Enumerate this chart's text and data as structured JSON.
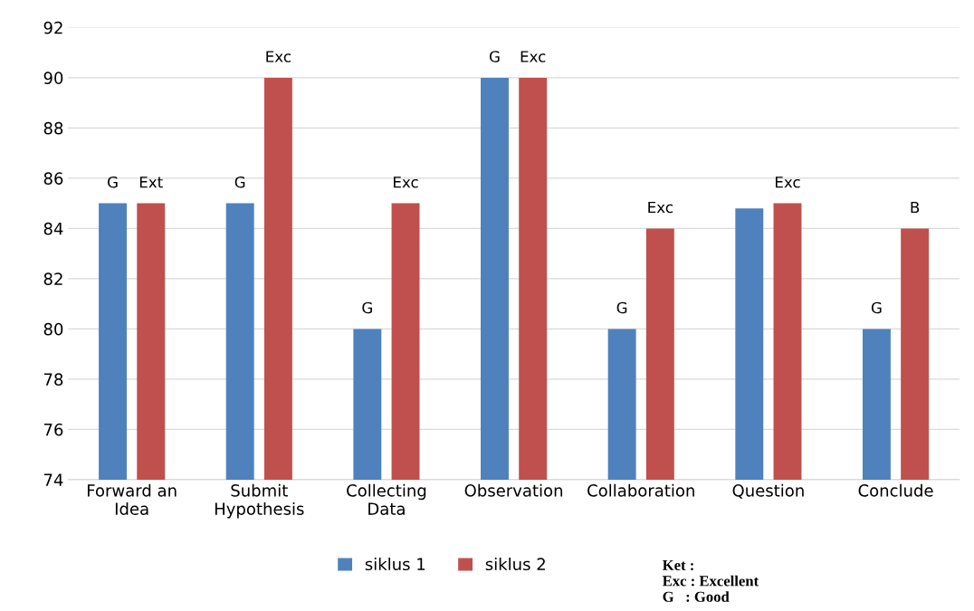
{
  "chart_data": {
    "type": "bar",
    "categories": [
      "Forward an\nIdea",
      "Submit\nHypothesis",
      "Collecting\nData",
      "Observation",
      "Collaboration",
      "Question",
      "Conclude"
    ],
    "series": [
      {
        "name": "siklus 1",
        "color": "#4f81bd",
        "values": [
          85,
          85,
          80,
          90,
          80,
          84.8,
          80
        ],
        "value_labels": [
          "G",
          "G",
          "G",
          "G",
          "G",
          null,
          "G"
        ]
      },
      {
        "name": "siklus 2",
        "color": "#c0504d",
        "values": [
          85,
          90,
          85,
          90,
          84,
          85,
          84
        ],
        "value_labels": [
          "Ext",
          "Exc",
          "Exc",
          "Exc",
          "Exc",
          "Exc",
          "B"
        ]
      }
    ],
    "ylim": [
      74,
      92
    ],
    "yticks": [
      74,
      76,
      78,
      80,
      82,
      84,
      86,
      88,
      90,
      92
    ],
    "grid": "y",
    "legend": "bottom",
    "annotations": [
      "Ket :\nExc : Excellent\nG   : Good"
    ]
  }
}
